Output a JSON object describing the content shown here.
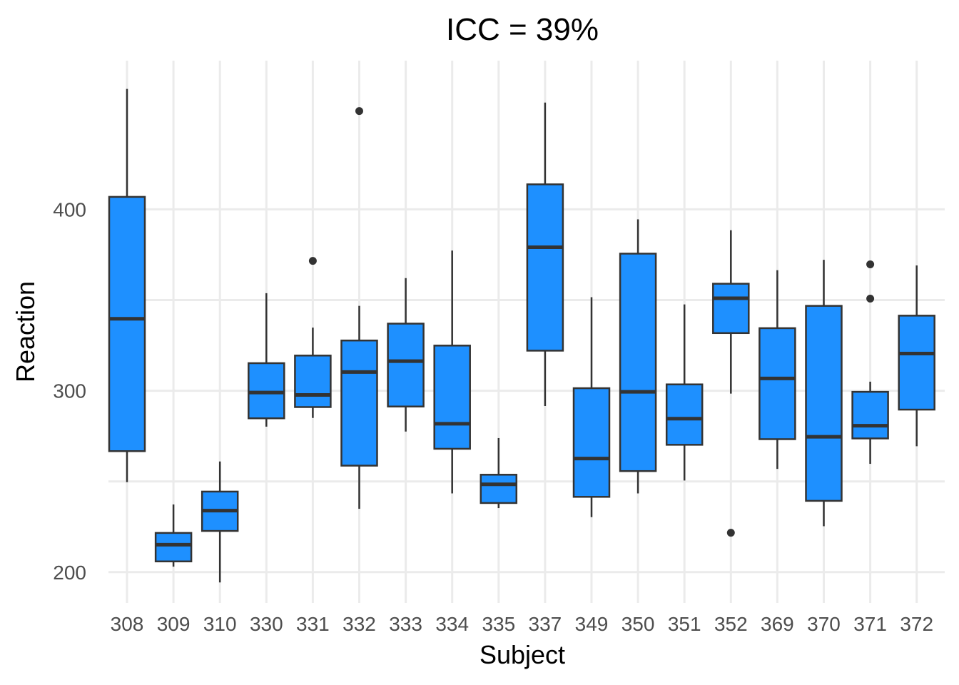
{
  "chart_data": {
    "type": "box",
    "title": "ICC = 39%",
    "xlabel": "Subject",
    "ylabel": "Reaction",
    "ylim": [
      183,
      482
    ],
    "yticks": [
      200,
      300,
      400
    ],
    "grid": true,
    "box_color": "#1e90ff",
    "categories": [
      "308",
      "309",
      "310",
      "330",
      "331",
      "332",
      "333",
      "334",
      "335",
      "337",
      "349",
      "350",
      "351",
      "352",
      "369",
      "370",
      "371",
      "372"
    ],
    "boxes": [
      {
        "category": "308",
        "whisker_low": 249.6,
        "q1": 266.7,
        "median": 339.7,
        "q3": 406.9,
        "whisker_high": 466.4,
        "outliers": []
      },
      {
        "category": "309",
        "whisker_low": 203.0,
        "q1": 205.9,
        "median": 215.1,
        "q3": 221.6,
        "whisker_high": 237.3,
        "outliers": []
      },
      {
        "category": "310",
        "whisker_low": 194.3,
        "q1": 222.7,
        "median": 233.9,
        "q3": 244.4,
        "whisker_high": 261.0,
        "outliers": []
      },
      {
        "category": "330",
        "whisker_low": 280.2,
        "q1": 284.8,
        "median": 299.0,
        "q3": 315.2,
        "whisker_high": 353.8,
        "outliers": []
      },
      {
        "category": "331",
        "whisker_low": 285.0,
        "q1": 291.0,
        "median": 297.7,
        "q3": 319.4,
        "whisker_high": 334.8,
        "outliers": [
          371.6
        ]
      },
      {
        "category": "332",
        "whisker_low": 234.9,
        "q1": 258.7,
        "median": 310.3,
        "q3": 327.7,
        "whisker_high": 346.8,
        "outliers": [
          454.2
        ]
      },
      {
        "category": "333",
        "whisker_low": 277.5,
        "q1": 291.3,
        "median": 316.3,
        "q3": 337.0,
        "whisker_high": 362.1,
        "outliers": []
      },
      {
        "category": "334",
        "whisker_low": 243.4,
        "q1": 268.0,
        "median": 281.8,
        "q3": 324.9,
        "whisker_high": 377.3,
        "outliers": []
      },
      {
        "category": "335",
        "whisker_low": 235.3,
        "q1": 238.1,
        "median": 248.4,
        "q3": 253.7,
        "whisker_high": 273.9,
        "outliers": []
      },
      {
        "category": "337",
        "whisker_low": 291.6,
        "q1": 322.1,
        "median": 379.1,
        "q3": 413.8,
        "whisker_high": 458.9,
        "outliers": []
      },
      {
        "category": "349",
        "whisker_low": 230.3,
        "q1": 241.5,
        "median": 262.6,
        "q3": 301.4,
        "whisker_high": 351.6,
        "outliers": []
      },
      {
        "category": "350",
        "whisker_low": 243.4,
        "q1": 255.7,
        "median": 299.4,
        "q3": 375.6,
        "whisker_high": 394.5,
        "outliers": []
      },
      {
        "category": "351",
        "whisker_low": 250.5,
        "q1": 270.2,
        "median": 284.6,
        "q3": 303.5,
        "whisker_high": 347.6,
        "outliers": []
      },
      {
        "category": "352",
        "whisker_low": 298.4,
        "q1": 331.8,
        "median": 351.0,
        "q3": 359.0,
        "whisker_high": 388.5,
        "outliers": [
          221.7
        ]
      },
      {
        "category": "369",
        "whisker_low": 256.9,
        "q1": 273.3,
        "median": 306.8,
        "q3": 334.5,
        "whisker_high": 366.5,
        "outliers": []
      },
      {
        "category": "370",
        "whisker_low": 225.3,
        "q1": 239.3,
        "median": 274.6,
        "q3": 346.8,
        "whisker_high": 372.2,
        "outliers": []
      },
      {
        "category": "371",
        "whisker_low": 259.7,
        "q1": 273.7,
        "median": 280.7,
        "q3": 299.4,
        "whisker_high": 305.0,
        "outliers": [
          350.8,
          369.7
        ]
      },
      {
        "category": "372",
        "whisker_low": 269.4,
        "q1": 289.6,
        "median": 320.5,
        "q3": 341.4,
        "whisker_high": 369.1,
        "outliers": []
      }
    ]
  }
}
